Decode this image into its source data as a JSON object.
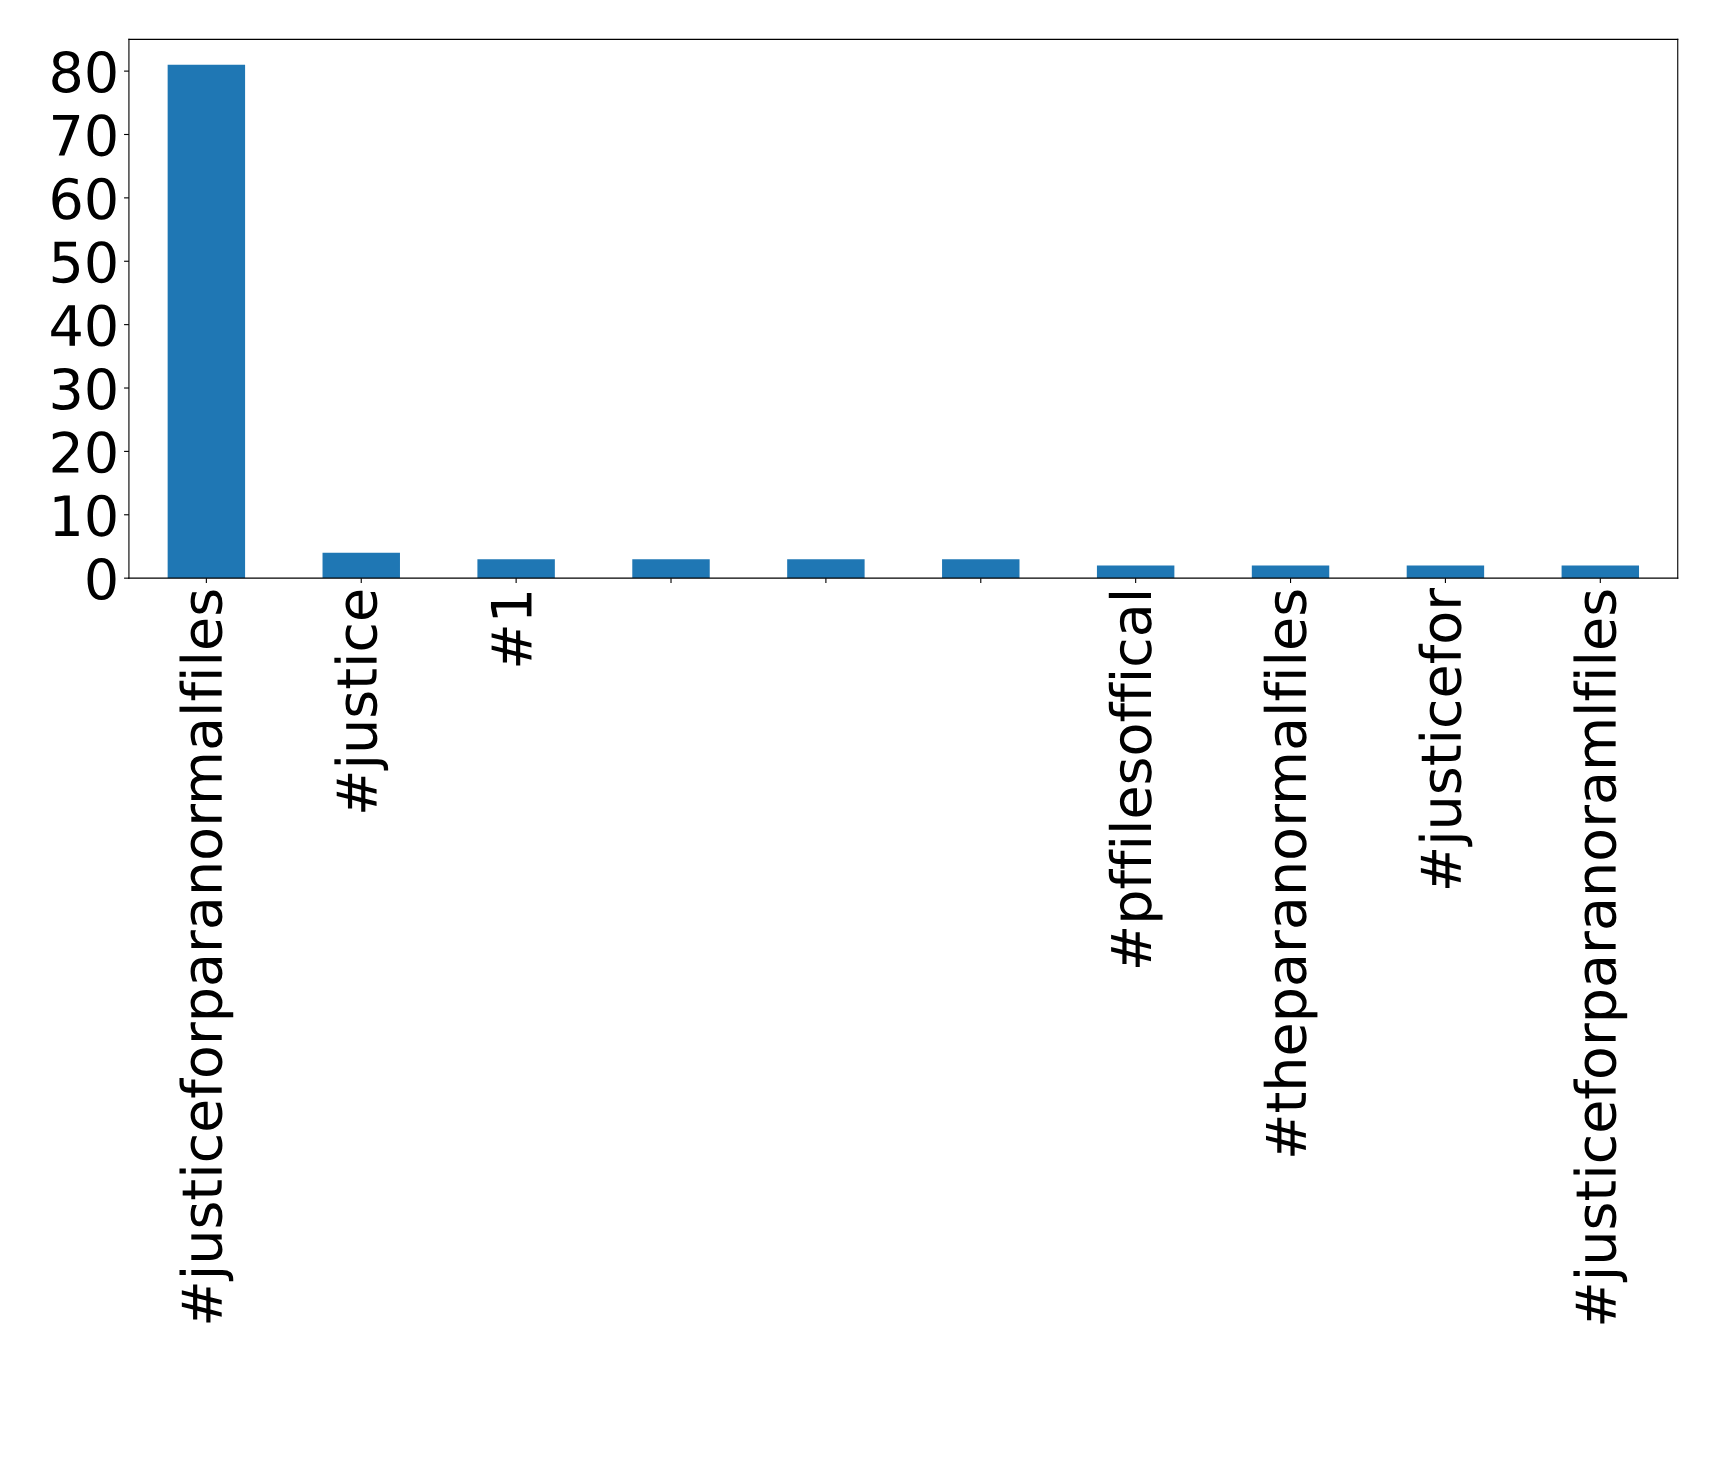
{
  "chart_data": {
    "type": "bar",
    "categories": [
      "#justiceforparanormalfiles",
      "#justice",
      "#1",
      null,
      null,
      null,
      "#pffilesoffical",
      "#theparanormalfiles",
      "#justicefor",
      "#justiceforparanoramlfiles"
    ],
    "values": [
      81,
      4,
      3,
      3,
      3,
      3,
      2,
      2,
      2,
      2
    ],
    "color": "#1f77b4",
    "ylim": [
      0,
      85
    ],
    "yticks": [
      0,
      10,
      20,
      30,
      40,
      50,
      60,
      70,
      80
    ],
    "grid": false,
    "legend": false
  }
}
